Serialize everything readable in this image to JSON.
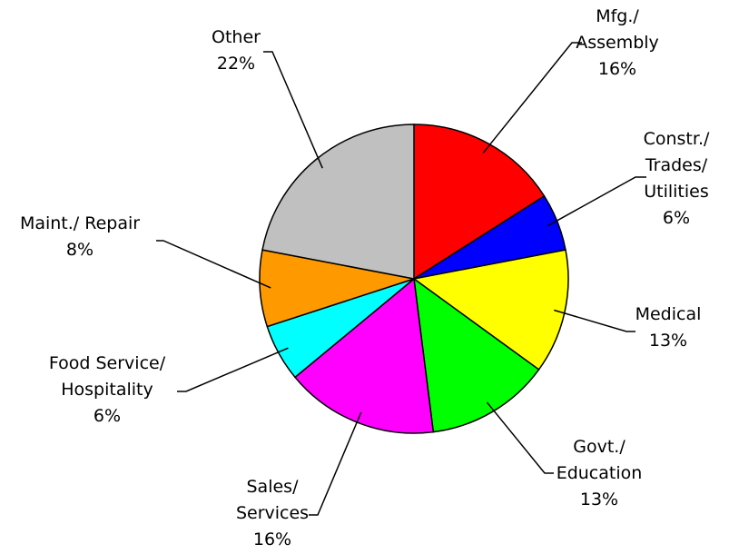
{
  "chart_data": {
    "type": "pie",
    "categories": [
      "Mfg./\nAssembly",
      "Constr./\nTrades/\nUtilities",
      "Medical",
      "Govt./\nEducation",
      "Sales/\nServices",
      "Food Service/\nHospitality",
      "Maint./ Repair",
      "Other"
    ],
    "values": [
      16,
      6,
      13,
      13,
      16,
      6,
      8,
      22
    ],
    "value_labels": [
      "16%",
      "6%",
      "13%",
      "13%",
      "16%",
      "6%",
      "8%",
      "22%"
    ],
    "colors": [
      "#ff0000",
      "#0000ff",
      "#ffff00",
      "#00ff00",
      "#ff00ff",
      "#00ffff",
      "#ff9900",
      "#c0c0c0"
    ]
  }
}
